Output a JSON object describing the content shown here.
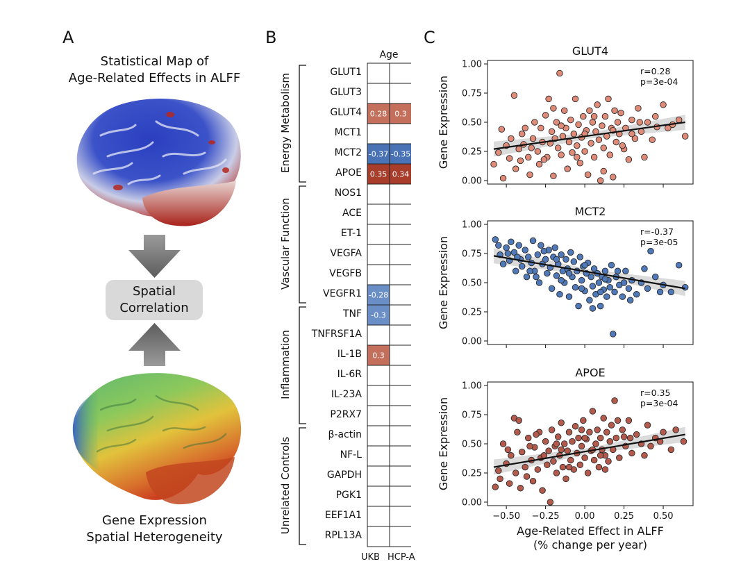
{
  "panelA": {
    "letter": "A",
    "top_title_line1": "Statistical Map of",
    "top_title_line2": "Age-Related Effects in ALFF",
    "box_line1": "Spatial",
    "box_line2": "Correlation",
    "bottom_title_line1": "Gene Expression",
    "bottom_title_line2": "Spatial Heterogeneity",
    "brain_top_colors": [
      "#2b3fbf",
      "#d9dcef",
      "#b5271d"
    ],
    "brain_bottom_colors": [
      "#3b64c2",
      "#6ec27a",
      "#e2c23c",
      "#c93a20"
    ]
  },
  "panelB": {
    "letter": "B",
    "column_header": "Age",
    "columns": [
      "UKB",
      "HCP-A"
    ],
    "groups": [
      {
        "name": "Energy Metabolism",
        "genes": [
          "GLUT1",
          "GLUT3",
          "GLUT4",
          "MCT1",
          "MCT2",
          "APOE"
        ]
      },
      {
        "name": "Vascular Function",
        "genes": [
          "NOS1",
          "ACE",
          "ET-1",
          "VEGFA",
          "VEGFB",
          "VEGFR1"
        ]
      },
      {
        "name": "Inflammation",
        "genes": [
          "TNF",
          "TNFRSF1A",
          "IL-1B",
          "IL-6R",
          "IL-23A",
          "P2RX7"
        ]
      },
      {
        "name": "Unrelated Controls",
        "genes": [
          "β-actin",
          "NF-L",
          "GAPDH",
          "PGK1",
          "EEF1A1",
          "RPL13A"
        ]
      }
    ],
    "cells": [
      {
        "gene": "GLUT4",
        "column": "UKB",
        "value": 0.28,
        "label": "0.28"
      },
      {
        "gene": "GLUT4",
        "column": "HCP-A",
        "value": 0.3,
        "label": "0.3"
      },
      {
        "gene": "MCT2",
        "column": "UKB",
        "value": -0.37,
        "label": "-0.37"
      },
      {
        "gene": "MCT2",
        "column": "HCP-A",
        "value": -0.35,
        "label": "-0.35"
      },
      {
        "gene": "APOE",
        "column": "UKB",
        "value": 0.35,
        "label": "0.35"
      },
      {
        "gene": "APOE",
        "column": "HCP-A",
        "value": 0.34,
        "label": "0.34"
      },
      {
        "gene": "VEGFR1",
        "column": "UKB",
        "value": -0.28,
        "label": "-0.28"
      },
      {
        "gene": "TNF",
        "column": "UKB",
        "value": -0.3,
        "label": "-0.3"
      },
      {
        "gene": "IL-1B",
        "column": "UKB",
        "value": 0.3,
        "label": "0.3"
      }
    ],
    "positive_colors": {
      "low": "#c46e5c",
      "high": "#a93d2c"
    },
    "negative_colors": {
      "low": "#6a8fc7",
      "high": "#4a73b5"
    }
  },
  "panelC": {
    "letter": "C",
    "ylabel": "Gene Expression",
    "xlabel_line1": "Age-Related Effect in ALFF",
    "xlabel_line2": "(% change per year)",
    "xticks": [
      "−0.50",
      "−0.25",
      "0.00",
      "0.25",
      "0.50"
    ],
    "yticks": [
      "0.00",
      "0.25",
      "0.50",
      "0.75",
      "1.00"
    ]
  },
  "chart_data": [
    {
      "type": "scatter",
      "title": "GLUT4",
      "stat_r": "r=0.28",
      "stat_p": "p=3e-04",
      "color": "#e08a78",
      "xlim": [
        -0.62,
        0.69
      ],
      "ylim": [
        -0.03,
        1.03
      ],
      "fit": {
        "x0": -0.58,
        "y0": 0.27,
        "x1": 0.64,
        "y1": 0.5
      },
      "points": [
        [
          -0.58,
          0.14
        ],
        [
          -0.55,
          0.24
        ],
        [
          -0.53,
          0.44
        ],
        [
          -0.52,
          0.02
        ],
        [
          -0.5,
          0.3
        ],
        [
          -0.48,
          0.19
        ],
        [
          -0.47,
          0.36
        ],
        [
          -0.45,
          0.73
        ],
        [
          -0.44,
          0.1
        ],
        [
          -0.42,
          0.27
        ],
        [
          -0.4,
          0.4
        ],
        [
          -0.39,
          0.31
        ],
        [
          -0.38,
          0.45
        ],
        [
          -0.36,
          0.2
        ],
        [
          -0.35,
          0.05
        ],
        [
          -0.33,
          0.36
        ],
        [
          -0.32,
          0.5
        ],
        [
          -0.3,
          0.25
        ],
        [
          -0.29,
          0.14
        ],
        [
          -0.28,
          0.45
        ],
        [
          -0.27,
          0.33
        ],
        [
          -0.25,
          0.56
        ],
        [
          -0.24,
          0.2
        ],
        [
          -0.23,
          0.7
        ],
        [
          -0.22,
          0.32
        ],
        [
          -0.21,
          0.42
        ],
        [
          -0.2,
          0.04
        ],
        [
          -0.19,
          0.36
        ],
        [
          -0.18,
          0.5
        ],
        [
          -0.17,
          0.28
        ],
        [
          -0.16,
          0.92
        ],
        [
          -0.15,
          0.22
        ],
        [
          -0.14,
          0.38
        ],
        [
          -0.13,
          0.6
        ],
        [
          -0.12,
          0.45
        ],
        [
          -0.11,
          0.1
        ],
        [
          -0.1,
          0.33
        ],
        [
          -0.09,
          0.52
        ],
        [
          -0.08,
          0.24
        ],
        [
          -0.07,
          0.4
        ],
        [
          -0.06,
          0.7
        ],
        [
          -0.05,
          0.3
        ],
        [
          -0.04,
          0.48
        ],
        [
          -0.03,
          0.15
        ],
        [
          -0.02,
          0.37
        ],
        [
          -0.01,
          0.55
        ],
        [
          0.0,
          0.25
        ],
        [
          0.01,
          0.43
        ],
        [
          0.02,
          0.05
        ],
        [
          0.03,
          0.6
        ],
        [
          0.04,
          0.32
        ],
        [
          0.05,
          0.5
        ],
        [
          0.06,
          0.2
        ],
        [
          0.07,
          0.42
        ],
        [
          0.08,
          0.65
        ],
        [
          0.09,
          0.35
        ],
        [
          0.1,
          0.0
        ],
        [
          0.11,
          0.47
        ],
        [
          0.12,
          0.28
        ],
        [
          0.13,
          0.55
        ],
        [
          0.14,
          0.38
        ],
        [
          0.15,
          0.7
        ],
        [
          0.16,
          0.22
        ],
        [
          0.17,
          0.45
        ],
        [
          0.18,
          0.03
        ],
        [
          0.19,
          0.6
        ],
        [
          0.2,
          0.33
        ],
        [
          0.21,
          0.5
        ],
        [
          0.22,
          0.4
        ],
        [
          0.23,
          0.58
        ],
        [
          0.25,
          0.27
        ],
        [
          0.26,
          0.45
        ],
        [
          0.28,
          0.18
        ],
        [
          0.3,
          0.52
        ],
        [
          0.32,
          0.36
        ],
        [
          0.34,
          0.62
        ],
        [
          0.36,
          0.42
        ],
        [
          0.38,
          0.2
        ],
        [
          0.4,
          0.5
        ],
        [
          0.43,
          0.35
        ],
        [
          0.46,
          0.46
        ],
        [
          0.5,
          0.65
        ],
        [
          0.53,
          0.45
        ],
        [
          0.56,
          0.48
        ],
        [
          0.6,
          0.52
        ],
        [
          0.64,
          0.38
        ],
        [
          -0.41,
          0.17
        ],
        [
          -0.34,
          0.28
        ],
        [
          -0.26,
          0.18
        ],
        [
          -0.2,
          0.62
        ],
        [
          -0.15,
          0.47
        ],
        [
          -0.05,
          0.2
        ],
        [
          0.0,
          0.4
        ],
        [
          0.06,
          0.55
        ],
        [
          0.12,
          0.08
        ],
        [
          0.18,
          0.43
        ],
        [
          0.24,
          0.3
        ],
        [
          0.3,
          0.4
        ],
        [
          0.35,
          0.5
        ],
        [
          0.45,
          0.55
        ]
      ]
    },
    {
      "type": "scatter",
      "title": "MCT2",
      "stat_r": "r=-0.37",
      "stat_p": "p=3e-05",
      "color": "#4f79b8",
      "xlim": [
        -0.62,
        0.69
      ],
      "ylim": [
        -0.03,
        1.03
      ],
      "fit": {
        "x0": -0.58,
        "y0": 0.73,
        "x1": 0.64,
        "y1": 0.45
      },
      "points": [
        [
          -0.57,
          0.87
        ],
        [
          -0.55,
          0.82
        ],
        [
          -0.54,
          0.74
        ],
        [
          -0.52,
          0.66
        ],
        [
          -0.5,
          0.8
        ],
        [
          -0.48,
          0.69
        ],
        [
          -0.47,
          0.85
        ],
        [
          -0.45,
          0.76
        ],
        [
          -0.44,
          0.6
        ],
        [
          -0.42,
          0.82
        ],
        [
          -0.41,
          0.7
        ],
        [
          -0.4,
          0.64
        ],
        [
          -0.38,
          0.78
        ],
        [
          -0.37,
          0.55
        ],
        [
          -0.36,
          0.72
        ],
        [
          -0.34,
          0.67
        ],
        [
          -0.33,
          0.86
        ],
        [
          -0.32,
          0.6
        ],
        [
          -0.3,
          0.74
        ],
        [
          -0.29,
          0.5
        ],
        [
          -0.28,
          0.82
        ],
        [
          -0.27,
          0.66
        ],
        [
          -0.25,
          0.7
        ],
        [
          -0.24,
          0.58
        ],
        [
          -0.23,
          0.78
        ],
        [
          -0.22,
          0.63
        ],
        [
          -0.21,
          0.45
        ],
        [
          -0.2,
          0.72
        ],
        [
          -0.19,
          0.8
        ],
        [
          -0.18,
          0.56
        ],
        [
          -0.17,
          0.66
        ],
        [
          -0.16,
          0.4
        ],
        [
          -0.15,
          0.74
        ],
        [
          -0.14,
          0.6
        ],
        [
          -0.13,
          0.5
        ],
        [
          -0.12,
          0.7
        ],
        [
          -0.11,
          0.62
        ],
        [
          -0.1,
          0.38
        ],
        [
          -0.09,
          0.76
        ],
        [
          -0.08,
          0.55
        ],
        [
          -0.07,
          0.68
        ],
        [
          -0.06,
          0.46
        ],
        [
          -0.05,
          0.6
        ],
        [
          -0.04,
          0.3
        ],
        [
          -0.03,
          0.72
        ],
        [
          -0.02,
          0.52
        ],
        [
          -0.01,
          0.64
        ],
        [
          0.0,
          0.43
        ],
        [
          0.01,
          0.58
        ],
        [
          0.02,
          0.67
        ],
        [
          0.03,
          0.35
        ],
        [
          0.04,
          0.55
        ],
        [
          0.05,
          0.47
        ],
        [
          0.06,
          0.62
        ],
        [
          0.07,
          0.4
        ],
        [
          0.08,
          0.58
        ],
        [
          0.09,
          0.5
        ],
        [
          0.1,
          0.3
        ],
        [
          0.11,
          0.55
        ],
        [
          0.12,
          0.44
        ],
        [
          0.13,
          0.6
        ],
        [
          0.14,
          0.38
        ],
        [
          0.15,
          0.52
        ],
        [
          0.16,
          0.46
        ],
        [
          0.17,
          0.65
        ],
        [
          0.18,
          0.06
        ],
        [
          0.19,
          0.42
        ],
        [
          0.2,
          0.55
        ],
        [
          0.22,
          0.48
        ],
        [
          0.24,
          0.38
        ],
        [
          0.26,
          0.6
        ],
        [
          0.28,
          0.45
        ],
        [
          0.3,
          0.52
        ],
        [
          0.33,
          0.4
        ],
        [
          0.36,
          0.5
        ],
        [
          0.4,
          0.45
        ],
        [
          0.45,
          0.55
        ],
        [
          0.5,
          0.48
        ],
        [
          0.55,
          0.42
        ],
        [
          0.6,
          0.65
        ],
        [
          0.64,
          0.46
        ],
        [
          -0.49,
          0.75
        ],
        [
          -0.43,
          0.72
        ],
        [
          -0.35,
          0.6
        ],
        [
          -0.26,
          0.77
        ],
        [
          -0.18,
          0.7
        ],
        [
          -0.1,
          0.58
        ],
        [
          -0.02,
          0.45
        ],
        [
          0.05,
          0.28
        ],
        [
          0.13,
          0.53
        ],
        [
          0.21,
          0.6
        ],
        [
          0.29,
          0.35
        ],
        [
          0.38,
          0.62
        ],
        [
          0.48,
          0.42
        ],
        [
          -0.31,
          0.55
        ],
        [
          -0.15,
          0.52
        ],
        [
          0.0,
          0.65
        ],
        [
          0.1,
          0.42
        ],
        [
          0.25,
          0.5
        ],
        [
          0.42,
          0.77
        ]
      ]
    },
    {
      "type": "scatter",
      "title": "APOE",
      "stat_r": "r=0.35",
      "stat_p": "p=3e-04",
      "color": "#b45a4c",
      "xlim": [
        -0.62,
        0.69
      ],
      "ylim": [
        -0.03,
        1.03
      ],
      "fit": {
        "x0": -0.58,
        "y0": 0.3,
        "x1": 0.64,
        "y1": 0.58
      },
      "points": [
        [
          -0.57,
          0.13
        ],
        [
          -0.55,
          0.27
        ],
        [
          -0.54,
          0.2
        ],
        [
          -0.52,
          0.5
        ],
        [
          -0.5,
          0.33
        ],
        [
          -0.48,
          0.16
        ],
        [
          -0.47,
          0.4
        ],
        [
          -0.45,
          0.72
        ],
        [
          -0.44,
          0.25
        ],
        [
          -0.42,
          0.7
        ],
        [
          -0.41,
          0.12
        ],
        [
          -0.4,
          0.43
        ],
        [
          -0.38,
          0.3
        ],
        [
          -0.37,
          0.22
        ],
        [
          -0.36,
          0.55
        ],
        [
          -0.34,
          0.36
        ],
        [
          -0.33,
          0.18
        ],
        [
          -0.32,
          0.47
        ],
        [
          -0.3,
          0.28
        ],
        [
          -0.29,
          0.6
        ],
        [
          -0.28,
          0.38
        ],
        [
          -0.27,
          0.1
        ],
        [
          -0.25,
          0.52
        ],
        [
          -0.24,
          0.32
        ],
        [
          -0.23,
          0.44
        ],
        [
          -0.22,
          0.0
        ],
        [
          -0.21,
          0.62
        ],
        [
          -0.2,
          0.35
        ],
        [
          -0.19,
          0.48
        ],
        [
          -0.18,
          0.25
        ],
        [
          -0.17,
          0.56
        ],
        [
          -0.16,
          0.4
        ],
        [
          -0.15,
          0.68
        ],
        [
          -0.14,
          0.3
        ],
        [
          -0.13,
          0.5
        ],
        [
          -0.12,
          0.2
        ],
        [
          -0.11,
          0.44
        ],
        [
          -0.1,
          0.6
        ],
        [
          -0.09,
          0.36
        ],
        [
          -0.08,
          0.52
        ],
        [
          -0.07,
          0.28
        ],
        [
          -0.06,
          0.65
        ],
        [
          -0.05,
          0.42
        ],
        [
          -0.04,
          0.55
        ],
        [
          -0.03,
          0.32
        ],
        [
          -0.02,
          0.48
        ],
        [
          -0.01,
          0.7
        ],
        [
          0.0,
          0.38
        ],
        [
          0.01,
          0.54
        ],
        [
          0.02,
          0.25
        ],
        [
          0.03,
          0.6
        ],
        [
          0.04,
          0.44
        ],
        [
          0.05,
          0.78
        ],
        [
          0.06,
          0.36
        ],
        [
          0.07,
          0.5
        ],
        [
          0.08,
          0.62
        ],
        [
          0.09,
          0.3
        ],
        [
          0.1,
          0.55
        ],
        [
          0.11,
          0.45
        ],
        [
          0.12,
          0.72
        ],
        [
          0.13,
          0.4
        ],
        [
          0.14,
          0.6
        ],
        [
          0.15,
          0.35
        ],
        [
          0.16,
          0.52
        ],
        [
          0.17,
          0.66
        ],
        [
          0.18,
          0.45
        ],
        [
          0.19,
          0.87
        ],
        [
          0.2,
          0.55
        ],
        [
          0.22,
          0.38
        ],
        [
          0.24,
          0.62
        ],
        [
          0.26,
          0.48
        ],
        [
          0.28,
          0.7
        ],
        [
          0.3,
          0.42
        ],
        [
          0.33,
          0.58
        ],
        [
          0.36,
          0.5
        ],
        [
          0.4,
          0.66
        ],
        [
          0.45,
          0.55
        ],
        [
          0.5,
          0.6
        ],
        [
          0.55,
          0.45
        ],
        [
          0.58,
          0.62
        ],
        [
          0.63,
          0.52
        ],
        [
          -0.49,
          0.45
        ],
        [
          -0.43,
          0.6
        ],
        [
          -0.35,
          0.48
        ],
        [
          -0.26,
          0.4
        ],
        [
          -0.18,
          0.5
        ],
        [
          -0.1,
          0.3
        ],
        [
          -0.02,
          0.62
        ],
        [
          0.05,
          0.45
        ],
        [
          0.13,
          0.28
        ],
        [
          0.21,
          0.7
        ],
        [
          0.29,
          0.55
        ],
        [
          0.38,
          0.4
        ],
        [
          0.48,
          0.52
        ],
        [
          -0.31,
          0.58
        ],
        [
          -0.15,
          0.45
        ],
        [
          0.0,
          0.55
        ],
        [
          0.1,
          0.4
        ],
        [
          0.25,
          0.56
        ],
        [
          0.42,
          0.48
        ]
      ]
    }
  ]
}
